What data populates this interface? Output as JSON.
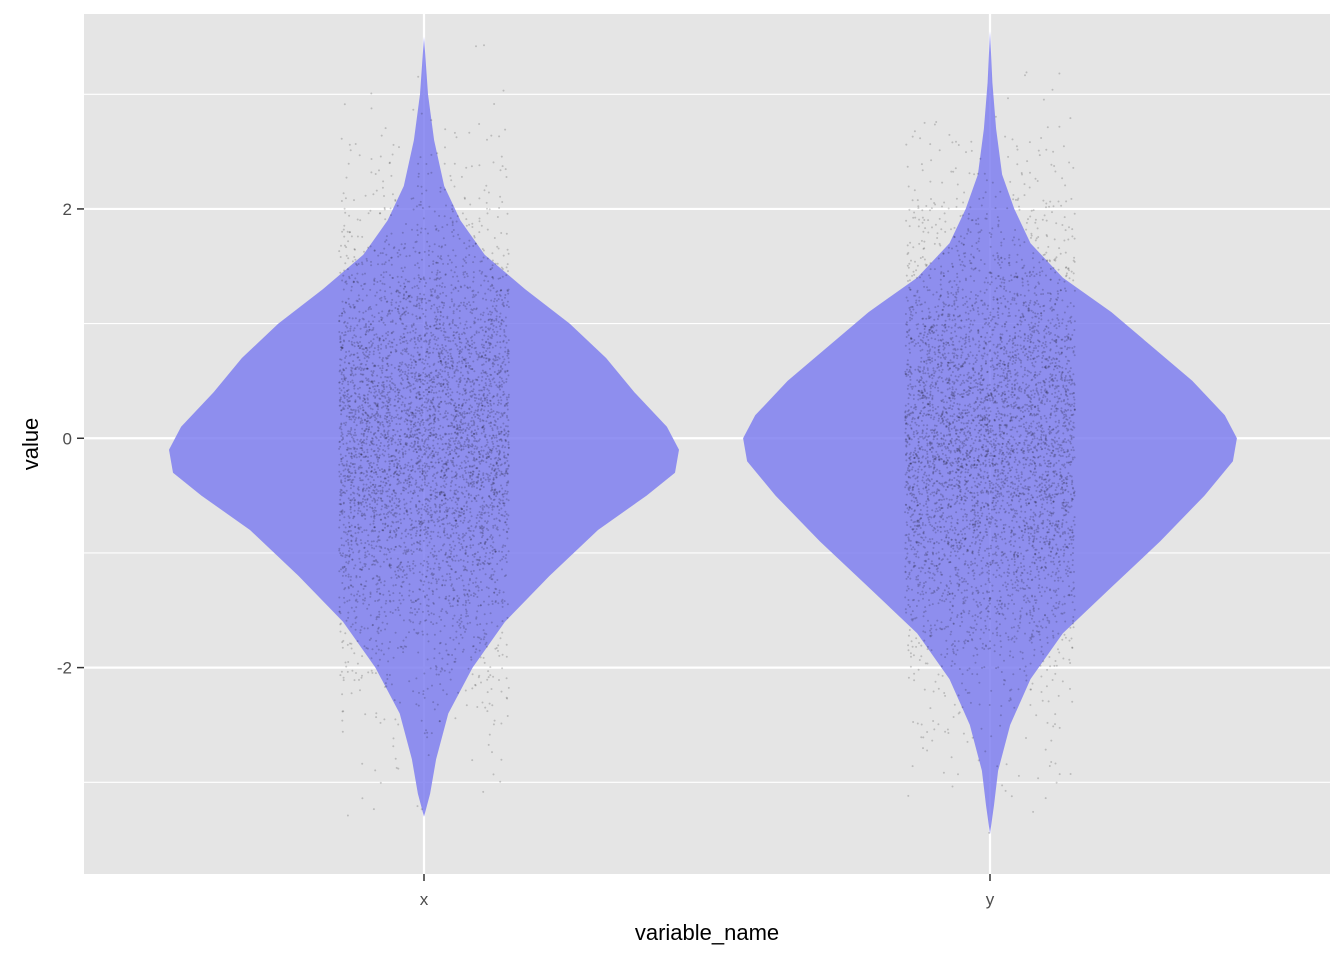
{
  "chart_data": {
    "type": "violin",
    "title": "",
    "xlabel": "variable_name",
    "ylabel": "value",
    "categories": [
      "x",
      "y"
    ],
    "ylim": [
      -3.8,
      3.7
    ],
    "y_ticks": [
      -2,
      0,
      2
    ],
    "y_tick_labels": [
      "-2",
      "0",
      "2"
    ],
    "grid": true,
    "legend": "none",
    "violin_fill": "#7f7ff0",
    "violin_opacity": 0.85,
    "point_color": "#000000",
    "panel_background": "#e5e5e5",
    "gridline_color": "#ffffff",
    "series": [
      {
        "category": "x",
        "min": -3.3,
        "max": 3.5,
        "jitter_width": 0.3,
        "density": [
          [
            -3.3,
            0.0
          ],
          [
            -3.1,
            0.015
          ],
          [
            -2.8,
            0.03
          ],
          [
            -2.4,
            0.06
          ],
          [
            -2.0,
            0.12
          ],
          [
            -1.6,
            0.2
          ],
          [
            -1.2,
            0.31
          ],
          [
            -0.8,
            0.43
          ],
          [
            -0.5,
            0.55
          ],
          [
            -0.3,
            0.62
          ],
          [
            -0.1,
            0.63
          ],
          [
            0.1,
            0.6
          ],
          [
            0.4,
            0.52
          ],
          [
            0.7,
            0.45
          ],
          [
            1.0,
            0.36
          ],
          [
            1.3,
            0.25
          ],
          [
            1.6,
            0.15
          ],
          [
            1.9,
            0.09
          ],
          [
            2.2,
            0.05
          ],
          [
            2.6,
            0.025
          ],
          [
            3.0,
            0.01
          ],
          [
            3.5,
            0.0
          ]
        ]
      },
      {
        "category": "y",
        "min": -3.45,
        "max": 3.55,
        "jitter_width": 0.3,
        "density": [
          [
            -3.45,
            0.0
          ],
          [
            -3.2,
            0.01
          ],
          [
            -2.9,
            0.02
          ],
          [
            -2.5,
            0.05
          ],
          [
            -2.1,
            0.1
          ],
          [
            -1.7,
            0.18
          ],
          [
            -1.3,
            0.3
          ],
          [
            -0.9,
            0.42
          ],
          [
            -0.5,
            0.53
          ],
          [
            -0.2,
            0.6
          ],
          [
            0.0,
            0.61
          ],
          [
            0.2,
            0.58
          ],
          [
            0.5,
            0.5
          ],
          [
            0.8,
            0.4
          ],
          [
            1.1,
            0.3
          ],
          [
            1.4,
            0.18
          ],
          [
            1.7,
            0.1
          ],
          [
            2.0,
            0.06
          ],
          [
            2.3,
            0.03
          ],
          [
            2.7,
            0.015
          ],
          [
            3.1,
            0.006
          ],
          [
            3.55,
            0.0
          ]
        ]
      }
    ]
  }
}
